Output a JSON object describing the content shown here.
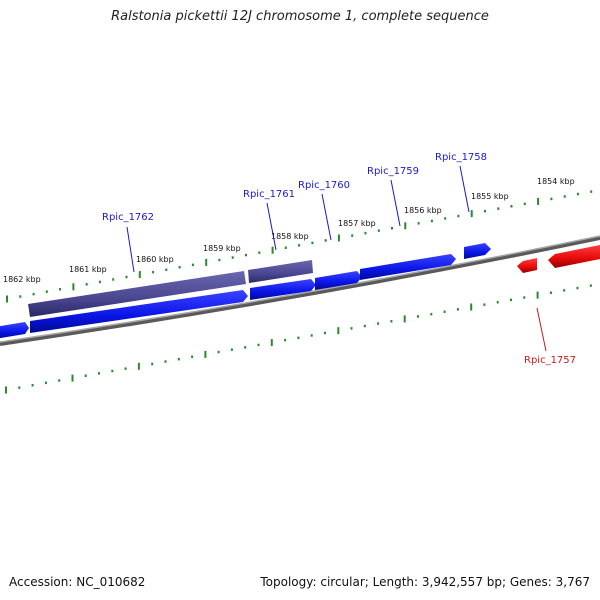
{
  "title": "Ralstonia pickettii 12J chromosome 1, complete sequence",
  "footer": {
    "accession": "Accession: NC_010682",
    "topology": "Topology: circular; Length: 3,942,557 bp; Genes: 3,767"
  },
  "colors": {
    "forward_gene": "#0a14e6",
    "forward_gene_dark": "#0000c0",
    "reverse_gene": "#e60a0a",
    "rna_like_gene": "#4a4690",
    "backbone": "#8a8a8a",
    "tick": "#2a8a2a",
    "forward_label": "#1a1acc",
    "reverse_label": "#cc1a1a"
  },
  "ticks": [
    "1862 kbp",
    "1861 kbp",
    "1860 kbp",
    "1859 kbp",
    "1858 kbp",
    "1857 kbp",
    "1856 kbp",
    "1855 kbp",
    "1854 kbp"
  ],
  "gene_labels": [
    "Rpic_1762",
    "Rpic_1761",
    "Rpic_1760",
    "Rpic_1759",
    "Rpic_1758",
    "Rpic_1757"
  ]
}
